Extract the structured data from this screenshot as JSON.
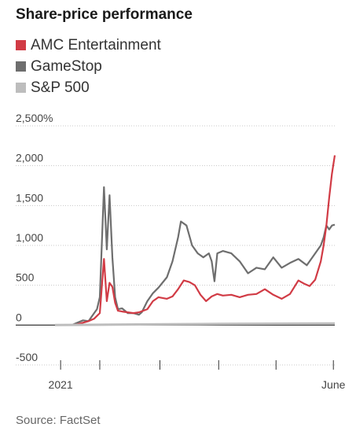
{
  "header": {
    "title": "Share-price performance"
  },
  "legend": [
    {
      "label": "AMC Entertainment",
      "color": "#d13b45"
    },
    {
      "label": "GameStop",
      "color": "#6e6e6e"
    },
    {
      "label": "S&P 500",
      "color": "#bdbdbd"
    }
  ],
  "footer": {
    "source": "Source: FactSet"
  },
  "chart_data": {
    "type": "line",
    "title": "Share-price performance",
    "xlabel": "",
    "ylabel": "",
    "yticks": [
      "2,500%",
      "2,000",
      "1,500",
      "1,000",
      "500",
      "0",
      "-500"
    ],
    "ytick_values": [
      2500,
      2000,
      1500,
      1000,
      500,
      0,
      -500
    ],
    "ylim": [
      -500,
      2500
    ],
    "xlim": [
      0,
      1
    ],
    "xticks": [
      {
        "x": 0.02,
        "label": "2021"
      },
      {
        "x": 0.16,
        "label": ""
      },
      {
        "x": 0.375,
        "label": ""
      },
      {
        "x": 0.585,
        "label": ""
      },
      {
        "x": 0.79,
        "label": ""
      },
      {
        "x": 0.995,
        "label": "June"
      }
    ],
    "grid": true,
    "legend_position": "top-left",
    "series": [
      {
        "name": "GameStop",
        "color": "#6e6e6e",
        "points": [
          [
            0.0,
            0
          ],
          [
            0.06,
            0
          ],
          [
            0.08,
            30
          ],
          [
            0.1,
            60
          ],
          [
            0.12,
            50
          ],
          [
            0.14,
            150
          ],
          [
            0.15,
            200
          ],
          [
            0.16,
            350
          ],
          [
            0.175,
            1730
          ],
          [
            0.185,
            950
          ],
          [
            0.195,
            1630
          ],
          [
            0.205,
            850
          ],
          [
            0.215,
            350
          ],
          [
            0.225,
            200
          ],
          [
            0.24,
            210
          ],
          [
            0.26,
            150
          ],
          [
            0.28,
            150
          ],
          [
            0.3,
            130
          ],
          [
            0.31,
            160
          ],
          [
            0.33,
            300
          ],
          [
            0.35,
            400
          ],
          [
            0.37,
            470
          ],
          [
            0.4,
            600
          ],
          [
            0.42,
            800
          ],
          [
            0.44,
            1100
          ],
          [
            0.45,
            1300
          ],
          [
            0.47,
            1250
          ],
          [
            0.49,
            1000
          ],
          [
            0.51,
            900
          ],
          [
            0.53,
            850
          ],
          [
            0.55,
            900
          ],
          [
            0.56,
            800
          ],
          [
            0.57,
            550
          ],
          [
            0.58,
            900
          ],
          [
            0.6,
            930
          ],
          [
            0.63,
            900
          ],
          [
            0.66,
            800
          ],
          [
            0.69,
            650
          ],
          [
            0.72,
            720
          ],
          [
            0.75,
            700
          ],
          [
            0.78,
            850
          ],
          [
            0.81,
            720
          ],
          [
            0.84,
            780
          ],
          [
            0.87,
            830
          ],
          [
            0.9,
            750
          ],
          [
            0.93,
            900
          ],
          [
            0.95,
            1000
          ],
          [
            0.96,
            1100
          ],
          [
            0.97,
            1250
          ],
          [
            0.98,
            1200
          ],
          [
            0.99,
            1250
          ],
          [
            1.0,
            1260
          ]
        ]
      },
      {
        "name": "AMC Entertainment",
        "color": "#d13b45",
        "points": [
          [
            0.0,
            0
          ],
          [
            0.06,
            0
          ],
          [
            0.08,
            10
          ],
          [
            0.1,
            30
          ],
          [
            0.12,
            50
          ],
          [
            0.14,
            80
          ],
          [
            0.16,
            150
          ],
          [
            0.175,
            830
          ],
          [
            0.185,
            300
          ],
          [
            0.195,
            530
          ],
          [
            0.205,
            480
          ],
          [
            0.215,
            280
          ],
          [
            0.225,
            180
          ],
          [
            0.24,
            170
          ],
          [
            0.26,
            160
          ],
          [
            0.28,
            150
          ],
          [
            0.3,
            160
          ],
          [
            0.33,
            200
          ],
          [
            0.35,
            300
          ],
          [
            0.37,
            350
          ],
          [
            0.4,
            330
          ],
          [
            0.42,
            360
          ],
          [
            0.44,
            450
          ],
          [
            0.46,
            560
          ],
          [
            0.48,
            540
          ],
          [
            0.5,
            500
          ],
          [
            0.52,
            380
          ],
          [
            0.54,
            300
          ],
          [
            0.56,
            360
          ],
          [
            0.58,
            390
          ],
          [
            0.6,
            370
          ],
          [
            0.63,
            380
          ],
          [
            0.66,
            350
          ],
          [
            0.69,
            380
          ],
          [
            0.72,
            390
          ],
          [
            0.75,
            450
          ],
          [
            0.78,
            380
          ],
          [
            0.81,
            330
          ],
          [
            0.84,
            390
          ],
          [
            0.87,
            560
          ],
          [
            0.89,
            520
          ],
          [
            0.91,
            490
          ],
          [
            0.93,
            570
          ],
          [
            0.95,
            800
          ],
          [
            0.96,
            1000
          ],
          [
            0.97,
            1250
          ],
          [
            0.98,
            1600
          ],
          [
            0.99,
            1900
          ],
          [
            1.0,
            2130
          ]
        ]
      },
      {
        "name": "S&P 500",
        "color": "#bdbdbd",
        "points": [
          [
            0.0,
            0
          ],
          [
            0.2,
            5
          ],
          [
            0.4,
            10
          ],
          [
            0.6,
            15
          ],
          [
            0.8,
            18
          ],
          [
            1.0,
            20
          ]
        ]
      }
    ]
  }
}
